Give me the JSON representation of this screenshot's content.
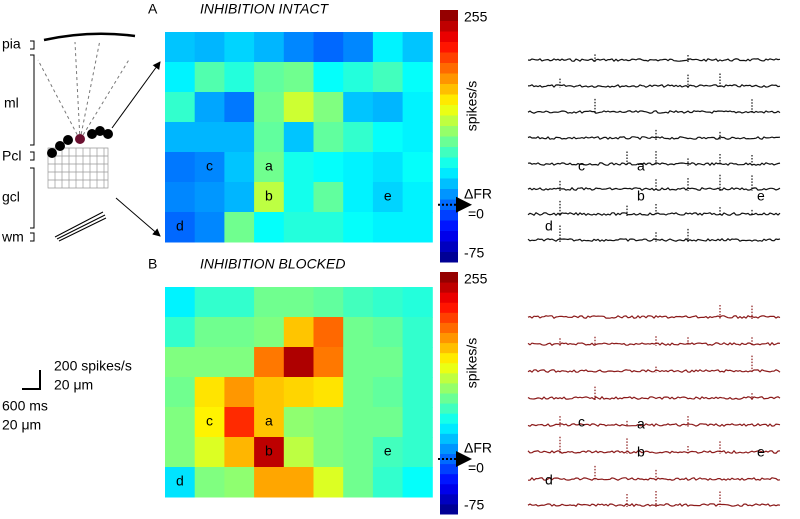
{
  "schematic": {
    "layers": [
      "pia",
      "ml",
      "Pcl",
      "gcl",
      "wm"
    ]
  },
  "scale_bar": {
    "labels": [
      "200 spikes/s",
      "20 μm",
      "600 ms",
      "20 μm"
    ]
  },
  "chart_data": [
    {
      "type": "heatmap",
      "panel": "A",
      "title": "INHIBITION INTACT",
      "title_color": "#000000",
      "trace_color": "#111111",
      "colormap": "jet",
      "colorbar_label": "spikes/s",
      "zlim": [
        -75,
        255
      ],
      "zticks": [
        255,
        -75
      ],
      "reference_label": [
        "ΔFR",
        "=0"
      ],
      "cell_labels": [
        "a",
        "b",
        "c",
        "d",
        "e"
      ],
      "values": [
        [
          30,
          25,
          35,
          25,
          10,
          0,
          10,
          45,
          30
        ],
        [
          45,
          75,
          60,
          80,
          85,
          50,
          60,
          70,
          50
        ],
        [
          65,
          20,
          5,
          85,
          115,
          90,
          30,
          25,
          45
        ],
        [
          25,
          25,
          25,
          80,
          30,
          80,
          65,
          50,
          45
        ],
        [
          5,
          10,
          30,
          85,
          55,
          50,
          45,
          40,
          50
        ],
        [
          10,
          15,
          25,
          110,
          55,
          80,
          45,
          35,
          45
        ],
        [
          0,
          10,
          85,
          50,
          60,
          60,
          50,
          45,
          45
        ]
      ]
    },
    {
      "type": "heatmap",
      "panel": "B",
      "title": "INHIBITION BLOCKED",
      "title_color": "#8b1a1a",
      "trace_color": "#8b1a1a",
      "colormap": "jet",
      "colorbar_label": "spikes/s",
      "zlim": [
        -75,
        255
      ],
      "zticks": [
        255,
        -75
      ],
      "reference_label": [
        "ΔFR",
        "=0"
      ],
      "cell_labels": [
        "a",
        "b",
        "c",
        "d",
        "e"
      ],
      "values": [
        [
          45,
          65,
          65,
          85,
          85,
          80,
          70,
          65,
          60
        ],
        [
          65,
          85,
          85,
          90,
          150,
          180,
          85,
          80,
          65
        ],
        [
          90,
          90,
          90,
          175,
          240,
          175,
          85,
          85,
          65
        ],
        [
          85,
          140,
          165,
          150,
          145,
          140,
          85,
          80,
          65
        ],
        [
          90,
          135,
          200,
          150,
          95,
          90,
          85,
          85,
          65
        ],
        [
          90,
          120,
          155,
          235,
          110,
          90,
          85,
          70,
          65
        ],
        [
          40,
          90,
          95,
          160,
          160,
          120,
          85,
          65,
          50
        ]
      ]
    }
  ]
}
